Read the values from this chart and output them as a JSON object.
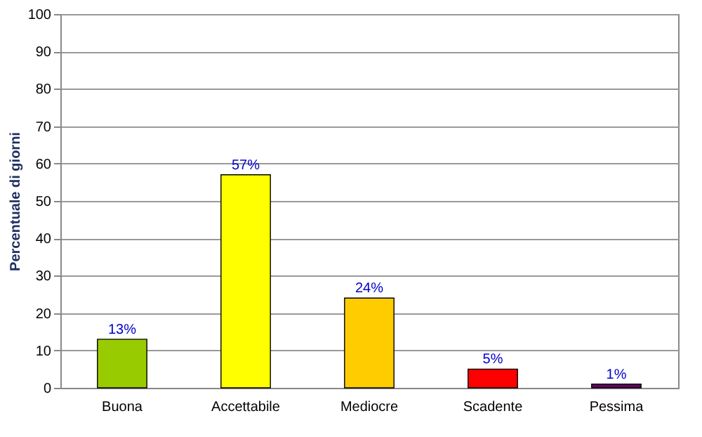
{
  "chart_data": {
    "type": "bar",
    "ylabel": "Percentuale di giorni",
    "categories": [
      "Buona",
      "Accettabile",
      "Mediocre",
      "Scadente",
      "Pessima"
    ],
    "values": [
      13,
      57,
      24,
      5,
      1
    ],
    "colors": [
      "#99cc00",
      "#ffff00",
      "#ffcc00",
      "#ff0000",
      "#660066"
    ],
    "value_labels": [
      "13%",
      "57%",
      "24%",
      "5%",
      "1%"
    ],
    "ylim": [
      0,
      100
    ],
    "yticks": [
      0,
      10,
      20,
      30,
      40,
      50,
      60,
      70,
      80,
      90,
      100
    ],
    "grid": "y",
    "legend": false
  }
}
